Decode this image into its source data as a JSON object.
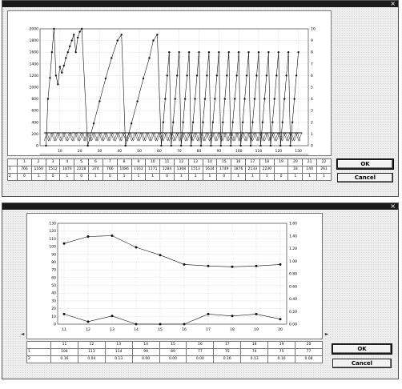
{
  "window1": {
    "title": "",
    "close_glyph": "×",
    "ok_label": "OK",
    "cancel_label": "Cancel",
    "status_text": "",
    "grid": {
      "row1_label": "1",
      "row2_label": "2",
      "headers": [
        "1",
        "2",
        "3",
        "4",
        "5",
        "6",
        "7",
        "8",
        "9",
        "10",
        "11",
        "12",
        "13",
        "14",
        "15",
        "16",
        "17",
        "18",
        "19",
        "20",
        "21",
        "22"
      ],
      "row1": [
        "766",
        "1160",
        "1512",
        "1870",
        "2228",
        "374",
        "766",
        "1086",
        "1163",
        "1171",
        "1284",
        "1368",
        "1513",
        "1634",
        "1749",
        "1876",
        "2133",
        "2230",
        "",
        "18",
        "140",
        "261"
      ],
      "row2": [
        "0",
        "1",
        "0",
        "1",
        "0",
        "1",
        "0",
        "1",
        "1",
        "1",
        "0",
        "1",
        "1",
        "1",
        "0",
        "1",
        "1",
        "1",
        "0",
        "1",
        "1",
        "1"
      ]
    }
  },
  "window2": {
    "title": "",
    "close_glyph": "×",
    "ok_label": "OK",
    "cancel_label": "Cancel",
    "grid": {
      "row1_label": "1",
      "row2_label": "2",
      "headers": [
        "11",
        "12",
        "13",
        "14",
        "15",
        "16",
        "17",
        "18",
        "19",
        "20"
      ],
      "row1": [
        "104",
        "113",
        "114",
        "99",
        "89",
        "77",
        "75",
        "74",
        "75",
        "77"
      ],
      "row2": [
        "0.16",
        "0.04",
        "0.13",
        "0.00",
        "0.00",
        "0.00",
        "0.16",
        "0.13",
        "0.16",
        "0.08"
      ]
    }
  },
  "chart_data": [
    {
      "type": "line",
      "title": "",
      "ylabel": "",
      "y2label": "",
      "xlim": [
        0,
        135
      ],
      "x_ticks": [
        10,
        20,
        30,
        40,
        50,
        60,
        70,
        80,
        90,
        100,
        110,
        120,
        130
      ],
      "ylim": [
        0,
        2000
      ],
      "y_ticks": [
        0,
        200,
        400,
        600,
        800,
        1000,
        1200,
        1400,
        1600,
        1800,
        2000
      ],
      "y2lim": [
        0,
        10
      ],
      "y2_ticks": [
        0,
        1,
        2,
        3,
        4,
        5,
        6,
        7,
        8,
        9,
        10
      ],
      "grid": true,
      "series": [
        {
          "axis": "left",
          "x": [
            1,
            2,
            3,
            4,
            5,
            6,
            7,
            8,
            9,
            10,
            11,
            12,
            13,
            14,
            15,
            16,
            17,
            18,
            19,
            20,
            21,
            22,
            23,
            24,
            25,
            26,
            27,
            28,
            29,
            30,
            31,
            32,
            33,
            34,
            35,
            36,
            37,
            38,
            39,
            40,
            41,
            42,
            43,
            44,
            45,
            46,
            47,
            48,
            49,
            50,
            51,
            52,
            53,
            54,
            55,
            56,
            57,
            58,
            59,
            60,
            61,
            62,
            63,
            64,
            65,
            66,
            67,
            68,
            69,
            70,
            71,
            72,
            73,
            74,
            75,
            76,
            77,
            78,
            79,
            80,
            81,
            82,
            83,
            84,
            85,
            86,
            87,
            88,
            89,
            90,
            91,
            92,
            93,
            94,
            95,
            96,
            97,
            98,
            99,
            100,
            101,
            102,
            103,
            104,
            105,
            106,
            107,
            108,
            109,
            110,
            111,
            112,
            113,
            114,
            115,
            116,
            117,
            118,
            119,
            120,
            121,
            122,
            123,
            124,
            125,
            126,
            127,
            128,
            129,
            130,
            131,
            132,
            133
          ],
          "values": [
            0,
            0,
            0,
            0,
            0,
            0,
            0,
            0,
            0,
            0,
            0,
            0,
            0,
            0,
            0,
            0,
            0,
            0,
            0,
            0,
            0,
            0,
            0,
            0,
            0,
            0,
            0,
            0,
            0,
            0,
            0,
            0,
            0,
            0,
            0,
            0,
            0,
            0,
            0,
            0,
            0,
            0,
            0,
            0,
            0,
            0,
            0,
            0,
            0,
            0,
            0,
            0,
            0,
            0,
            0,
            0,
            0,
            0,
            0,
            0,
            0,
            0,
            0,
            0,
            0,
            0,
            0,
            0,
            0,
            0,
            0,
            0,
            0,
            0,
            0,
            0,
            0,
            0,
            0,
            0,
            0,
            0,
            0,
            0,
            0,
            0,
            0,
            0,
            0,
            0,
            0,
            0,
            0,
            0,
            0,
            0,
            0,
            0,
            0,
            0,
            0,
            0,
            0,
            0,
            0,
            0,
            0,
            0,
            0,
            0,
            0,
            0,
            0,
            0,
            0,
            0,
            0,
            0,
            0,
            0,
            0,
            0,
            0,
            0,
            0,
            0,
            0,
            0,
            0,
            0,
            0,
            0,
            0
          ],
          "segments": [
            [
              [
                3,
                0
              ],
              [
                4,
                800
              ],
              [
                5,
                1160
              ],
              [
                6,
                1600
              ],
              [
                7,
                2000
              ],
              [
                8,
                1200
              ],
              [
                9,
                1050
              ],
              [
                10,
                1350
              ],
              [
                11,
                1250
              ],
              [
                12,
                1370
              ],
              [
                13,
                1500
              ],
              [
                14,
                1600
              ],
              [
                15,
                1700
              ],
              [
                16,
                1800
              ],
              [
                17,
                1900
              ],
              [
                18,
                1600
              ],
              [
                19,
                1850
              ],
              [
                20,
                1950
              ],
              [
                21,
                2000
              ]
            ],
            [
              [
                24,
                0
              ],
              [
                27,
                380
              ],
              [
                30,
                760
              ],
              [
                33,
                1150
              ],
              [
                36,
                1500
              ],
              [
                39,
                1800
              ],
              [
                41,
                1900
              ]
            ],
            [
              [
                43,
                0
              ],
              [
                46,
                380
              ],
              [
                49,
                760
              ],
              [
                52,
                1150
              ],
              [
                55,
                1500
              ],
              [
                57,
                1800
              ],
              [
                59,
                1900
              ]
            ],
            [
              [
                61,
                0
              ],
              [
                62,
                400
              ],
              [
                63,
                800
              ],
              [
                64,
                1200
              ],
              [
                65,
                1600
              ]
            ],
            [
              [
                66,
                0
              ],
              [
                67,
                400
              ],
              [
                68,
                800
              ],
              [
                69,
                1200
              ],
              [
                70,
                1600
              ]
            ],
            [
              [
                71,
                0
              ],
              [
                72,
                400
              ],
              [
                73,
                800
              ],
              [
                74,
                1200
              ],
              [
                75,
                1600
              ]
            ],
            [
              [
                76,
                0
              ],
              [
                77,
                400
              ],
              [
                78,
                800
              ],
              [
                79,
                1200
              ],
              [
                80,
                1600
              ]
            ],
            [
              [
                81,
                0
              ],
              [
                82,
                400
              ],
              [
                83,
                800
              ],
              [
                84,
                1200
              ],
              [
                85,
                1600
              ]
            ],
            [
              [
                86,
                0
              ],
              [
                87,
                400
              ],
              [
                88,
                800
              ],
              [
                89,
                1200
              ],
              [
                90,
                1600
              ]
            ],
            [
              [
                91,
                0
              ],
              [
                92,
                400
              ],
              [
                93,
                800
              ],
              [
                94,
                1200
              ],
              [
                95,
                1600
              ]
            ],
            [
              [
                96,
                0
              ],
              [
                97,
                400
              ],
              [
                98,
                800
              ],
              [
                99,
                1200
              ],
              [
                100,
                1600
              ]
            ],
            [
              [
                101,
                0
              ],
              [
                102,
                400
              ],
              [
                103,
                800
              ],
              [
                104,
                1200
              ],
              [
                105,
                1600
              ]
            ],
            [
              [
                106,
                0
              ],
              [
                107,
                400
              ],
              [
                108,
                800
              ],
              [
                109,
                1200
              ],
              [
                110,
                1600
              ]
            ],
            [
              [
                111,
                0
              ],
              [
                112,
                400
              ],
              [
                113,
                800
              ],
              [
                114,
                1200
              ],
              [
                115,
                1600
              ]
            ],
            [
              [
                116,
                0
              ],
              [
                117,
                400
              ],
              [
                118,
                800
              ],
              [
                119,
                1200
              ],
              [
                120,
                1600
              ]
            ],
            [
              [
                121,
                0
              ],
              [
                122,
                400
              ],
              [
                123,
                800
              ],
              [
                124,
                1200
              ],
              [
                125,
                1600
              ]
            ],
            [
              [
                126,
                0
              ],
              [
                127,
                400
              ],
              [
                128,
                800
              ],
              [
                129,
                1200
              ],
              [
                130,
                1600
              ]
            ]
          ]
        },
        {
          "axis": "right",
          "note": "",
          "points_y2": [
            0.5,
            1,
            0.5,
            1,
            0.5,
            1,
            0.5,
            1,
            0.5,
            1
          ]
        }
      ]
    },
    {
      "type": "line",
      "title": "",
      "ylabel": "",
      "y2label": "",
      "categories": [
        "11",
        "12",
        "13",
        "14",
        "15",
        "16",
        "17",
        "18",
        "19",
        "20"
      ],
      "ylim": [
        0,
        130
      ],
      "y_ticks": [
        0,
        10,
        20,
        30,
        40,
        50,
        60,
        70,
        80,
        90,
        100,
        110,
        120,
        130
      ],
      "y2lim": [
        0,
        1.6
      ],
      "y2_ticks": [
        "0.00",
        "0.20",
        "0.40",
        "0.60",
        "0.80",
        "1.00",
        "1.20",
        "1.40",
        "1.60"
      ],
      "grid": true,
      "series": [
        {
          "axis": "left",
          "values": [
            104,
            113,
            114,
            99,
            89,
            77,
            75,
            74,
            75,
            77
          ]
        },
        {
          "axis": "right",
          "values": [
            0.16,
            0.04,
            0.13,
            0.0,
            0.0,
            0.0,
            0.16,
            0.13,
            0.16,
            0.08
          ]
        }
      ]
    }
  ]
}
